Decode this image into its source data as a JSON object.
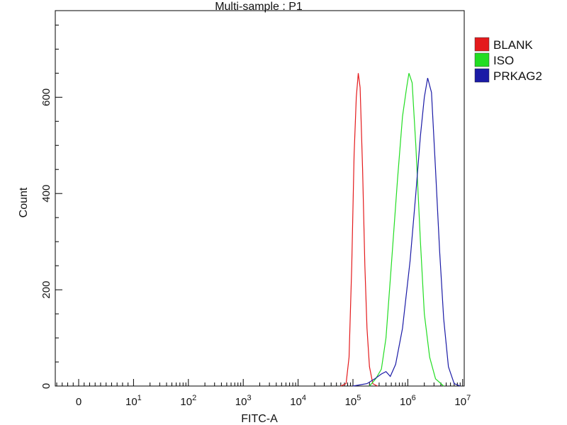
{
  "chart_data": {
    "type": "line",
    "title": "Multi-sample : P1",
    "xlabel": "FITC-A",
    "ylabel": "Count",
    "x_scale": "biexponential",
    "x_ticks": [
      {
        "label": "0",
        "value": 0
      },
      {
        "label": "10",
        "sup": "1",
        "value": 10
      },
      {
        "label": "10",
        "sup": "2",
        "value": 100
      },
      {
        "label": "10",
        "sup": "3",
        "value": 1000
      },
      {
        "label": "10",
        "sup": "4",
        "value": 10000
      },
      {
        "label": "10",
        "sup": "5",
        "value": 100000
      },
      {
        "label": "10",
        "sup": "6",
        "value": 1000000
      },
      {
        "label": "10",
        "sup": "7",
        "value": 10000000
      }
    ],
    "y_ticks": [
      0,
      200,
      400,
      600
    ],
    "ylim": [
      0,
      780
    ],
    "grid": false,
    "legend_position": "right",
    "series": [
      {
        "name": "BLANK",
        "color": "#e41a1c",
        "points": [
          [
            60000,
            0
          ],
          [
            75000,
            5
          ],
          [
            85000,
            60
          ],
          [
            95000,
            250
          ],
          [
            105000,
            480
          ],
          [
            115000,
            600
          ],
          [
            125000,
            650
          ],
          [
            135000,
            620
          ],
          [
            150000,
            450
          ],
          [
            165000,
            250
          ],
          [
            180000,
            120
          ],
          [
            200000,
            40
          ],
          [
            230000,
            5
          ],
          [
            280000,
            0
          ]
        ]
      },
      {
        "name": "ISO",
        "color": "#22dd22",
        "points": [
          [
            200000,
            0
          ],
          [
            260000,
            15
          ],
          [
            330000,
            35
          ],
          [
            400000,
            100
          ],
          [
            500000,
            250
          ],
          [
            650000,
            430
          ],
          [
            800000,
            560
          ],
          [
            950000,
            620
          ],
          [
            1050000,
            650
          ],
          [
            1200000,
            630
          ],
          [
            1400000,
            500
          ],
          [
            1700000,
            300
          ],
          [
            2000000,
            150
          ],
          [
            2500000,
            60
          ],
          [
            3200000,
            15
          ],
          [
            4500000,
            0
          ]
        ]
      },
      {
        "name": "PRKAG2",
        "color": "#1a1aa6",
        "points": [
          [
            100000,
            0
          ],
          [
            180000,
            5
          ],
          [
            250000,
            15
          ],
          [
            330000,
            25
          ],
          [
            400000,
            30
          ],
          [
            480000,
            20
          ],
          [
            600000,
            45
          ],
          [
            800000,
            120
          ],
          [
            1100000,
            260
          ],
          [
            1400000,
            400
          ],
          [
            1700000,
            520
          ],
          [
            2000000,
            600
          ],
          [
            2300000,
            640
          ],
          [
            2700000,
            610
          ],
          [
            3200000,
            450
          ],
          [
            3800000,
            280
          ],
          [
            4500000,
            140
          ],
          [
            5500000,
            40
          ],
          [
            7000000,
            5
          ],
          [
            9000000,
            0
          ]
        ]
      }
    ]
  }
}
